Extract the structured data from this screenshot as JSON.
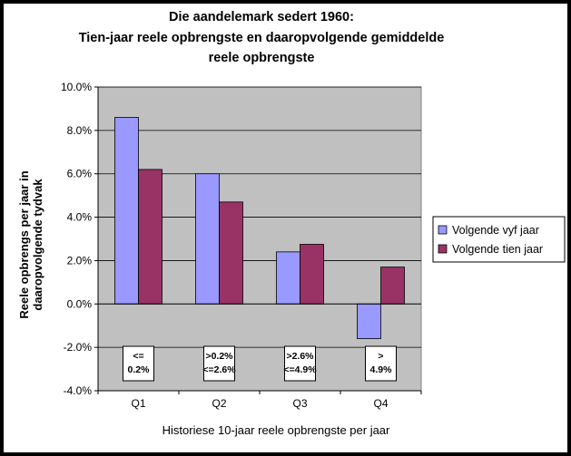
{
  "chart_data": {
    "type": "bar",
    "title": [
      "Die aandelemark sedert 1960:",
      "Tien-jaar reele opbrengste en daaropvolgende gemiddelde",
      "reele opbrengste"
    ],
    "xlabel": "Historiese 10-jaar reele opbrengste per jaar",
    "ylabel": [
      "Reele opbrengs per jaar in",
      "daaropvolgende tydvak"
    ],
    "categories": [
      "Q1",
      "Q2",
      "Q3",
      "Q4"
    ],
    "series": [
      {
        "name": "Volgende vyf jaar",
        "color": "#9999ff",
        "values": [
          8.6,
          6.0,
          2.4,
          -1.6
        ]
      },
      {
        "name": "Volgende tien jaar",
        "color": "#993366",
        "values": [
          6.2,
          4.7,
          2.75,
          1.7
        ]
      }
    ],
    "ylim": [
      -4,
      10
    ],
    "yticks": [
      -4,
      -2,
      0,
      2,
      4,
      6,
      8,
      10
    ],
    "ytick_labels": [
      "-4.0%",
      "-2.0%",
      "0.0%",
      "2.0%",
      "4.0%",
      "6.0%",
      "8.0%",
      "10.0%"
    ],
    "grid": true,
    "plot_background": "#c0c0c0",
    "legend_position": "right",
    "annotations": [
      [
        "<=",
        "0.2%"
      ],
      [
        ">0.2%",
        "<=2.6%"
      ],
      [
        ">2.6%",
        "<=4.9%"
      ],
      [
        ">",
        "4.9%"
      ]
    ]
  }
}
